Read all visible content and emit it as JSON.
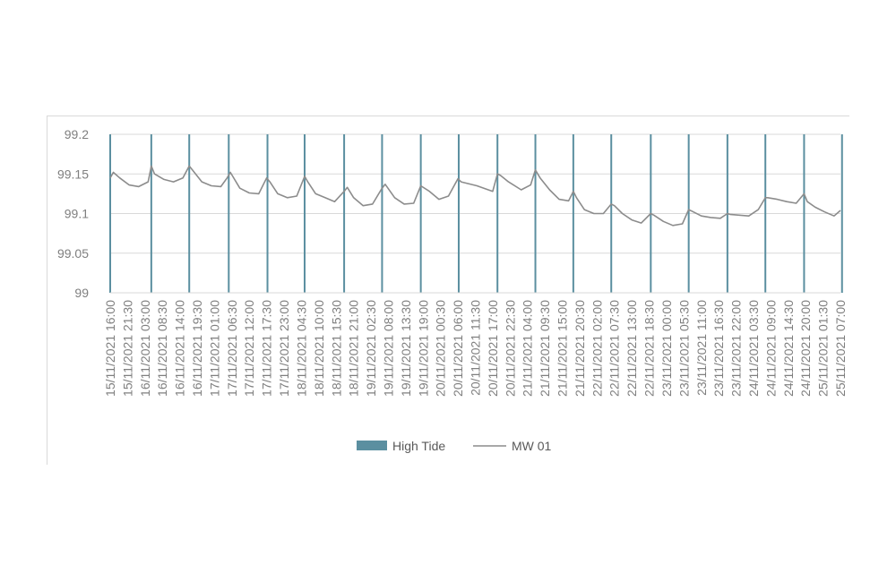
{
  "chart_data": {
    "type": "line",
    "title": "",
    "xlabel": "",
    "ylabel": "",
    "ylim": [
      99,
      99.2
    ],
    "y_ticks": [
      "99",
      "99.05",
      "99.1",
      "99.15",
      "99.2"
    ],
    "x_tick_labels": [
      "15/11/2021 16:00",
      "15/11/2021 21:30",
      "16/11/2021 03:00",
      "16/11/2021 08:30",
      "16/11/2021 14:00",
      "16/11/2021 19:30",
      "17/11/2021 01:00",
      "17/11/2021 06:30",
      "17/11/2021 12:00",
      "17/11/2021 17:30",
      "17/11/2021 23:00",
      "18/11/2021 04:30",
      "18/11/2021 10:00",
      "18/11/2021 15:30",
      "18/11/2021 21:00",
      "19/11/2021 02:30",
      "19/11/2021 08:00",
      "19/11/2021 13:30",
      "19/11/2021 19:00",
      "20/11/2021 00:30",
      "20/11/2021 06:00",
      "20/11/2021 11:30",
      "20/11/2021 17:00",
      "20/11/2021 22:30",
      "21/11/2021 04:00",
      "21/11/2021 09:30",
      "21/11/2021 15:00",
      "21/11/2021 20:30",
      "22/11/2021 02:00",
      "22/11/2021 07:30",
      "22/11/2021 13:00",
      "22/11/2021 18:30",
      "23/11/2021 00:00",
      "23/11/2021 05:30",
      "23/11/2021 11:00",
      "23/11/2021 16:30",
      "23/11/2021 22:00",
      "24/11/2021 03:30",
      "24/11/2021 09:00",
      "24/11/2021 14:30",
      "24/11/2021 20:00",
      "25/11/2021 01:30",
      "25/11/2021 07:00"
    ],
    "x_start": "15/11/2021 16:00",
    "x_end": "25/11/2021 07:00",
    "grid": true,
    "legend_position": "bottom",
    "series": [
      {
        "name": "High Tide",
        "kind": "vertical-bars",
        "color": "#5b8fa0",
        "x": [
          "15/11/2021 16:00",
          "16/11/2021 05:00",
          "16/11/2021 17:00",
          "17/11/2021 05:30",
          "17/11/2021 17:45",
          "18/11/2021 05:30",
          "18/11/2021 18:00",
          "19/11/2021 06:00",
          "19/11/2021 18:15",
          "20/11/2021 06:15",
          "20/11/2021 18:30",
          "21/11/2021 06:30",
          "21/11/2021 18:30",
          "22/11/2021 06:30",
          "22/11/2021 19:00",
          "23/11/2021 07:00",
          "23/11/2021 19:15",
          "24/11/2021 07:15",
          "24/11/2021 19:30",
          "25/11/2021 07:30"
        ]
      },
      {
        "name": "MW 01",
        "kind": "line",
        "color": "#8c8c8c",
        "x": [
          "15/11/2021 16:00",
          "15/11/2021 17:00",
          "15/11/2021 19:00",
          "15/11/2021 22:00",
          "16/11/2021 01:00",
          "16/11/2021 04:00",
          "16/11/2021 05:00",
          "16/11/2021 06:00",
          "16/11/2021 09:00",
          "16/11/2021 12:00",
          "16/11/2021 15:00",
          "16/11/2021 17:00",
          "16/11/2021 18:00",
          "16/11/2021 21:00",
          "17/11/2021 00:00",
          "17/11/2021 03:00",
          "17/11/2021 05:00",
          "17/11/2021 06:00",
          "17/11/2021 09:00",
          "17/11/2021 12:00",
          "17/11/2021 15:00",
          "17/11/2021 17:30",
          "17/11/2021 18:30",
          "17/11/2021 21:00",
          "18/11/2021 00:00",
          "18/11/2021 03:00",
          "18/11/2021 05:30",
          "18/11/2021 06:30",
          "18/11/2021 09:00",
          "18/11/2021 12:00",
          "18/11/2021 15:00",
          "18/11/2021 18:00",
          "18/11/2021 19:00",
          "18/11/2021 21:00",
          "19/11/2021 00:00",
          "19/11/2021 03:00",
          "19/11/2021 06:00",
          "19/11/2021 07:00",
          "19/11/2021 10:00",
          "19/11/2021 13:00",
          "19/11/2021 16:00",
          "19/11/2021 18:15",
          "19/11/2021 21:00",
          "20/11/2021 00:00",
          "20/11/2021 03:00",
          "20/11/2021 06:00",
          "20/11/2021 07:00",
          "20/11/2021 12:00",
          "20/11/2021 17:00",
          "20/11/2021 18:30",
          "20/11/2021 19:30",
          "20/11/2021 22:00",
          "21/11/2021 02:00",
          "21/11/2021 05:00",
          "21/11/2021 06:30",
          "21/11/2021 08:00",
          "21/11/2021 11:00",
          "21/11/2021 14:00",
          "21/11/2021 17:00",
          "21/11/2021 18:30",
          "21/11/2021 19:30",
          "21/11/2021 22:00",
          "22/11/2021 01:00",
          "22/11/2021 04:00",
          "22/11/2021 06:30",
          "22/11/2021 07:30",
          "22/11/2021 10:00",
          "22/11/2021 13:00",
          "22/11/2021 16:00",
          "22/11/2021 19:00",
          "22/11/2021 20:00",
          "22/11/2021 23:00",
          "23/11/2021 02:00",
          "23/11/2021 05:00",
          "23/11/2021 07:00",
          "23/11/2021 08:00",
          "23/11/2021 11:00",
          "23/11/2021 14:00",
          "23/11/2021 17:00",
          "23/11/2021 19:15",
          "23/11/2021 20:00",
          "23/11/2021 23:00",
          "24/11/2021 02:00",
          "24/11/2021 05:00",
          "24/11/2021 07:15",
          "24/11/2021 08:00",
          "24/11/2021 11:00",
          "24/11/2021 14:00",
          "24/11/2021 17:00",
          "24/11/2021 19:30",
          "24/11/2021 20:30",
          "24/11/2021 23:00",
          "25/11/2021 02:00",
          "25/11/2021 05:00",
          "25/11/2021 07:00"
        ],
        "values": [
          99.145,
          99.152,
          99.145,
          99.136,
          99.134,
          99.14,
          99.16,
          99.15,
          99.143,
          99.14,
          99.145,
          99.16,
          99.155,
          99.14,
          99.135,
          99.134,
          99.145,
          99.152,
          99.132,
          99.126,
          99.125,
          99.145,
          99.14,
          99.125,
          99.12,
          99.122,
          99.147,
          99.14,
          99.125,
          99.12,
          99.115,
          99.128,
          99.133,
          99.12,
          99.11,
          99.112,
          99.132,
          99.137,
          99.12,
          99.112,
          99.113,
          99.135,
          99.128,
          99.118,
          99.122,
          99.144,
          99.14,
          99.135,
          99.128,
          99.15,
          99.148,
          99.14,
          99.13,
          99.136,
          99.155,
          99.145,
          99.13,
          99.118,
          99.116,
          99.128,
          99.12,
          99.105,
          99.1,
          99.1,
          99.112,
          99.11,
          99.1,
          99.092,
          99.088,
          99.1,
          99.098,
          99.09,
          99.085,
          99.087,
          99.105,
          99.103,
          99.097,
          99.095,
          99.094,
          99.1,
          99.099,
          99.098,
          99.097,
          99.105,
          99.12,
          99.12,
          99.118,
          99.115,
          99.113,
          99.125,
          99.115,
          99.108,
          99.102,
          99.097,
          99.104
        ]
      }
    ]
  }
}
